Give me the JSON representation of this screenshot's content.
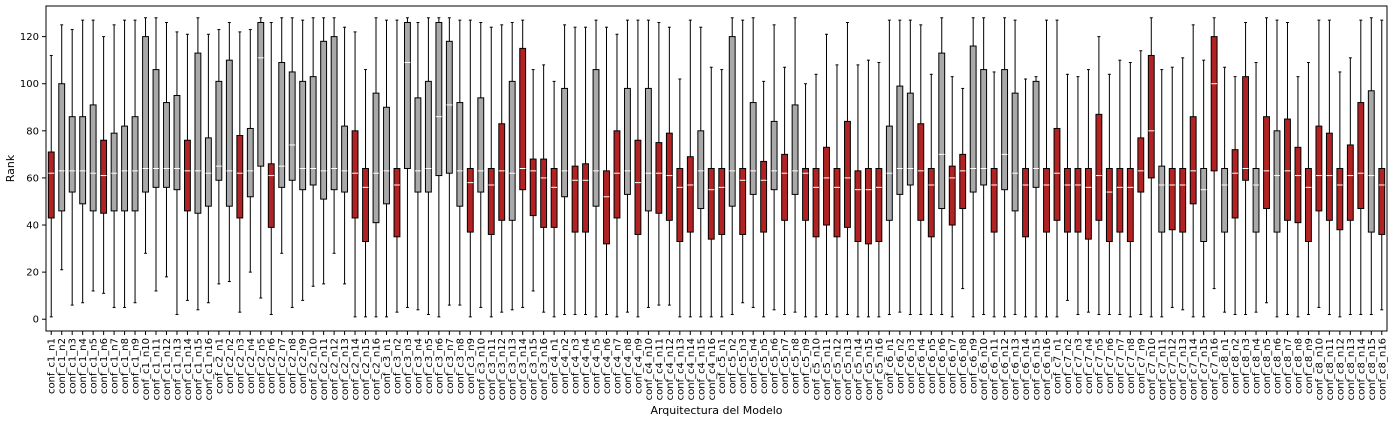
{
  "chart_data": {
    "type": "boxplot",
    "xlabel": "Arquitectura del Modelo",
    "ylabel": "Rank",
    "ylim": [
      -5,
      133
    ],
    "yticks": [
      0,
      20,
      40,
      60,
      80,
      100,
      120
    ],
    "grid": false,
    "colors": {
      "gray": "#a9a9a9",
      "red": "#b22222",
      "median": "#ffffff",
      "whisker": "#000000"
    },
    "categories": [
      "conf_c1_n1",
      "conf_c1_n2",
      "conf_c1_n3",
      "conf_c1_n4",
      "conf_c1_n5",
      "conf_c1_n6",
      "conf_c1_n7",
      "conf_c1_n8",
      "conf_c1_n9",
      "conf_c1_n10",
      "conf_c1_n11",
      "conf_c1_n12",
      "conf_c1_n13",
      "conf_c1_n14",
      "conf_c1_n15",
      "conf_c1_n16",
      "conf_c2_n1",
      "conf_c2_n2",
      "conf_c2_n3",
      "conf_c2_n4",
      "conf_c2_n5",
      "conf_c2_n6",
      "conf_c2_n7",
      "conf_c2_n8",
      "conf_c2_n9",
      "conf_c2_n10",
      "conf_c2_n11",
      "conf_c2_n12",
      "conf_c2_n13",
      "conf_c2_n14",
      "conf_c2_n15",
      "conf_c2_n16",
      "conf_c3_n1",
      "conf_c3_n2",
      "conf_c3_n3",
      "conf_c3_n4",
      "conf_c3_n5",
      "conf_c3_n6",
      "conf_c3_n7",
      "conf_c3_n8",
      "conf_c3_n9",
      "conf_c3_n10",
      "conf_c3_n11",
      "conf_c3_n12",
      "conf_c3_n13",
      "conf_c3_n14",
      "conf_c3_n15",
      "conf_c3_n16",
      "conf_c4_n1",
      "conf_c4_n2",
      "conf_c4_n3",
      "conf_c4_n4",
      "conf_c4_n5",
      "conf_c4_n6",
      "conf_c4_n7",
      "conf_c4_n8",
      "conf_c4_n9",
      "conf_c4_n10",
      "conf_c4_n11",
      "conf_c4_n12",
      "conf_c4_n13",
      "conf_c4_n14",
      "conf_c4_n15",
      "conf_c4_n16",
      "conf_c5_n1",
      "conf_c5_n2",
      "conf_c5_n3",
      "conf_c5_n4",
      "conf_c5_n5",
      "conf_c5_n6",
      "conf_c5_n7",
      "conf_c5_n8",
      "conf_c5_n9",
      "conf_c5_n10",
      "conf_c5_n11",
      "conf_c5_n12",
      "conf_c5_n13",
      "conf_c5_n14",
      "conf_c5_n15",
      "conf_c5_n16",
      "conf_c6_n1",
      "conf_c6_n2",
      "conf_c6_n3",
      "conf_c6_n4",
      "conf_c6_n5",
      "conf_c6_n6",
      "conf_c6_n7",
      "conf_c6_n8",
      "conf_c6_n9",
      "conf_c6_n10",
      "conf_c6_n11",
      "conf_c6_n12",
      "conf_c6_n13",
      "conf_c6_n14",
      "conf_c6_n15",
      "conf_c6_n16",
      "conf_c7_n1",
      "conf_c7_n2",
      "conf_c7_n3",
      "conf_c7_n4",
      "conf_c7_n5",
      "conf_c7_n6",
      "conf_c7_n7",
      "conf_c7_n8",
      "conf_c7_n9",
      "conf_c7_n10",
      "conf_c7_n11",
      "conf_c7_n12",
      "conf_c7_n13",
      "conf_c7_n14",
      "conf_c7_n15",
      "conf_c7_n16",
      "conf_c8_n1",
      "conf_c8_n2",
      "conf_c8_n3",
      "conf_c8_n4",
      "conf_c8_n5",
      "conf_c8_n6",
      "conf_c8_n7",
      "conf_c8_n8",
      "conf_c8_n9",
      "conf_c8_n10",
      "conf_c8_n11",
      "conf_c8_n12",
      "conf_c8_n13",
      "conf_c8_n14",
      "conf_c8_n15",
      "conf_c8_n16"
    ],
    "box_colors": [
      "red",
      "gray",
      "gray",
      "gray",
      "gray",
      "red",
      "gray",
      "gray",
      "gray",
      "gray",
      "gray",
      "gray",
      "gray",
      "red",
      "gray",
      "gray",
      "gray",
      "gray",
      "red",
      "gray",
      "gray",
      "red",
      "gray",
      "gray",
      "gray",
      "gray",
      "gray",
      "gray",
      "gray",
      "red",
      "red",
      "gray",
      "gray",
      "red",
      "gray",
      "gray",
      "gray",
      "gray",
      "gray",
      "gray",
      "red",
      "gray",
      "red",
      "red",
      "gray",
      "red",
      "red",
      "red",
      "red",
      "gray",
      "red",
      "red",
      "gray",
      "red",
      "red",
      "gray",
      "red",
      "gray",
      "red",
      "red",
      "red",
      "red",
      "gray",
      "red",
      "red",
      "gray",
      "red",
      "gray",
      "red",
      "gray",
      "red",
      "gray",
      "red",
      "red",
      "red",
      "red",
      "red",
      "red",
      "red",
      "red",
      "gray",
      "gray",
      "gray",
      "red",
      "red",
      "gray",
      "red",
      "red",
      "gray",
      "gray",
      "red",
      "gray",
      "gray",
      "red",
      "gray",
      "red",
      "red",
      "red",
      "red",
      "red",
      "red",
      "red",
      "red",
      "red",
      "red",
      "red",
      "gray",
      "red",
      "red",
      "red",
      "gray",
      "red",
      "gray",
      "red",
      "red",
      "gray",
      "red",
      "gray",
      "red",
      "red",
      "red",
      "red",
      "red",
      "red",
      "red",
      "red",
      "gray",
      "red"
    ],
    "boxes": [
      {
        "min": 1,
        "q1": 43,
        "median": 62,
        "q3": 71,
        "max": 112
      },
      {
        "min": 21,
        "q1": 46,
        "median": 63,
        "q3": 100,
        "max": 125
      },
      {
        "min": 6,
        "q1": 54,
        "median": 63,
        "q3": 86,
        "max": 123
      },
      {
        "min": 7,
        "q1": 49,
        "median": 63,
        "q3": 86,
        "max": 127
      },
      {
        "min": 12,
        "q1": 46,
        "median": 62,
        "q3": 91,
        "max": 127
      },
      {
        "min": 11,
        "q1": 45,
        "median": 61,
        "q3": 76,
        "max": 120
      },
      {
        "min": 5,
        "q1": 46,
        "median": 62,
        "q3": 79,
        "max": 125
      },
      {
        "min": 5,
        "q1": 46,
        "median": 63,
        "q3": 82,
        "max": 127
      },
      {
        "min": 7,
        "q1": 46,
        "median": 63,
        "q3": 86,
        "max": 127
      },
      {
        "min": 28,
        "q1": 54,
        "median": 64,
        "q3": 120,
        "max": 128
      },
      {
        "min": 12,
        "q1": 56,
        "median": 64,
        "q3": 106,
        "max": 128
      },
      {
        "min": 18,
        "q1": 56,
        "median": 64,
        "q3": 92,
        "max": 126
      },
      {
        "min": 2,
        "q1": 55,
        "median": 64,
        "q3": 95,
        "max": 122
      },
      {
        "min": 8,
        "q1": 46,
        "median": 63,
        "q3": 76,
        "max": 121
      },
      {
        "min": 4,
        "q1": 45,
        "median": 63,
        "q3": 113,
        "max": 128
      },
      {
        "min": 7,
        "q1": 48,
        "median": 62,
        "q3": 77,
        "max": 121
      },
      {
        "min": 15,
        "q1": 59,
        "median": 65,
        "q3": 101,
        "max": 123
      },
      {
        "min": 16,
        "q1": 48,
        "median": 63,
        "q3": 110,
        "max": 126
      },
      {
        "min": 3,
        "q1": 43,
        "median": 62,
        "q3": 78,
        "max": 122
      },
      {
        "min": 20,
        "q1": 52,
        "median": 63,
        "q3": 81,
        "max": 123
      },
      {
        "min": 9,
        "q1": 65,
        "median": 111,
        "q3": 126,
        "max": 128
      },
      {
        "min": 2,
        "q1": 39,
        "median": 61,
        "q3": 66,
        "max": 126
      },
      {
        "min": 28,
        "q1": 56,
        "median": 65,
        "q3": 109,
        "max": 128
      },
      {
        "min": 5,
        "q1": 59,
        "median": 74,
        "q3": 105,
        "max": 128
      },
      {
        "min": 8,
        "q1": 55,
        "median": 64,
        "q3": 101,
        "max": 127
      },
      {
        "min": 14,
        "q1": 57,
        "median": 64,
        "q3": 103,
        "max": 128
      },
      {
        "min": 15,
        "q1": 51,
        "median": 63,
        "q3": 118,
        "max": 128
      },
      {
        "min": 28,
        "q1": 55,
        "median": 64,
        "q3": 120,
        "max": 128
      },
      {
        "min": 15,
        "q1": 54,
        "median": 63,
        "q3": 82,
        "max": 124
      },
      {
        "min": 1,
        "q1": 43,
        "median": 62,
        "q3": 80,
        "max": 122
      },
      {
        "min": 1,
        "q1": 33,
        "median": 56,
        "q3": 64,
        "max": 106
      },
      {
        "min": 1,
        "q1": 41,
        "median": 62,
        "q3": 96,
        "max": 128
      },
      {
        "min": 1,
        "q1": 49,
        "median": 63,
        "q3": 90,
        "max": 127
      },
      {
        "min": 3,
        "q1": 35,
        "median": 57,
        "q3": 64,
        "max": 127
      },
      {
        "min": 5,
        "q1": 64,
        "median": 109,
        "q3": 126,
        "max": 128
      },
      {
        "min": 4,
        "q1": 54,
        "median": 63,
        "q3": 94,
        "max": 126
      },
      {
        "min": 2,
        "q1": 54,
        "median": 64,
        "q3": 101,
        "max": 128
      },
      {
        "min": 1,
        "q1": 61,
        "median": 86,
        "q3": 126,
        "max": 128
      },
      {
        "min": 6,
        "q1": 62,
        "median": 91,
        "q3": 118,
        "max": 128
      },
      {
        "min": 6,
        "q1": 48,
        "median": 63,
        "q3": 92,
        "max": 127
      },
      {
        "min": 1,
        "q1": 37,
        "median": 58,
        "q3": 64,
        "max": 127
      },
      {
        "min": 5,
        "q1": 54,
        "median": 63,
        "q3": 94,
        "max": 126
      },
      {
        "min": 1,
        "q1": 36,
        "median": 57,
        "q3": 64,
        "max": 124
      },
      {
        "min": 3,
        "q1": 42,
        "median": 63,
        "q3": 83,
        "max": 125
      },
      {
        "min": 4,
        "q1": 42,
        "median": 62,
        "q3": 101,
        "max": 126
      },
      {
        "min": 5,
        "q1": 55,
        "median": 64,
        "q3": 115,
        "max": 127
      },
      {
        "min": 12,
        "q1": 44,
        "median": 63,
        "q3": 68,
        "max": 106
      },
      {
        "min": 3,
        "q1": 39,
        "median": 60,
        "q3": 68,
        "max": 108
      },
      {
        "min": 1,
        "q1": 39,
        "median": 56,
        "q3": 64,
        "max": 101
      },
      {
        "min": 2,
        "q1": 52,
        "median": 63,
        "q3": 98,
        "max": 125
      },
      {
        "min": 2,
        "q1": 37,
        "median": 59,
        "q3": 65,
        "max": 124
      },
      {
        "min": 2,
        "q1": 37,
        "median": 59,
        "q3": 66,
        "max": 124
      },
      {
        "min": 1,
        "q1": 48,
        "median": 63,
        "q3": 106,
        "max": 127
      },
      {
        "min": 2,
        "q1": 32,
        "median": 52,
        "q3": 63,
        "max": 124
      },
      {
        "min": 1,
        "q1": 43,
        "median": 62,
        "q3": 80,
        "max": 121
      },
      {
        "min": 3,
        "q1": 53,
        "median": 63,
        "q3": 98,
        "max": 127
      },
      {
        "min": 1,
        "q1": 36,
        "median": 58,
        "q3": 76,
        "max": 127
      },
      {
        "min": 5,
        "q1": 46,
        "median": 62,
        "q3": 98,
        "max": 127
      },
      {
        "min": 6,
        "q1": 45,
        "median": 62,
        "q3": 75,
        "max": 126
      },
      {
        "min": 6,
        "q1": 42,
        "median": 61,
        "q3": 79,
        "max": 124
      },
      {
        "min": 1,
        "q1": 33,
        "median": 56,
        "q3": 64,
        "max": 102
      },
      {
        "min": 1,
        "q1": 37,
        "median": 57,
        "q3": 69,
        "max": 127
      },
      {
        "min": 1,
        "q1": 47,
        "median": 63,
        "q3": 80,
        "max": 124
      },
      {
        "min": 1,
        "q1": 34,
        "median": 55,
        "q3": 64,
        "max": 107
      },
      {
        "min": 1,
        "q1": 36,
        "median": 56,
        "q3": 64,
        "max": 106
      },
      {
        "min": 2,
        "q1": 48,
        "median": 63,
        "q3": 120,
        "max": 128
      },
      {
        "min": 7,
        "q1": 36,
        "median": 59,
        "q3": 64,
        "max": 127
      },
      {
        "min": 5,
        "q1": 53,
        "median": 63,
        "q3": 92,
        "max": 128
      },
      {
        "min": 1,
        "q1": 37,
        "median": 59,
        "q3": 67,
        "max": 101
      },
      {
        "min": 4,
        "q1": 55,
        "median": 63,
        "q3": 84,
        "max": 125
      },
      {
        "min": 2,
        "q1": 42,
        "median": 62,
        "q3": 70,
        "max": 107
      },
      {
        "min": 3,
        "q1": 53,
        "median": 63,
        "q3": 91,
        "max": 128
      },
      {
        "min": 1,
        "q1": 42,
        "median": 62,
        "q3": 64,
        "max": 100
      },
      {
        "min": 1,
        "q1": 35,
        "median": 56,
        "q3": 64,
        "max": 104
      },
      {
        "min": 2,
        "q1": 40,
        "median": 60,
        "q3": 73,
        "max": 121
      },
      {
        "min": 1,
        "q1": 35,
        "median": 56,
        "q3": 64,
        "max": 108
      },
      {
        "min": 2,
        "q1": 39,
        "median": 60,
        "q3": 84,
        "max": 126
      },
      {
        "min": 1,
        "q1": 33,
        "median": 55,
        "q3": 63,
        "max": 108
      },
      {
        "min": 1,
        "q1": 32,
        "median": 55,
        "q3": 64,
        "max": 110
      },
      {
        "min": 1,
        "q1": 33,
        "median": 56,
        "q3": 64,
        "max": 109
      },
      {
        "min": 2,
        "q1": 42,
        "median": 62,
        "q3": 82,
        "max": 127
      },
      {
        "min": 3,
        "q1": 53,
        "median": 64,
        "q3": 99,
        "max": 127
      },
      {
        "min": 2,
        "q1": 57,
        "median": 64,
        "q3": 96,
        "max": 127
      },
      {
        "min": 2,
        "q1": 42,
        "median": 63,
        "q3": 83,
        "max": 125
      },
      {
        "min": 2,
        "q1": 35,
        "median": 57,
        "q3": 64,
        "max": 104
      },
      {
        "min": 2,
        "q1": 47,
        "median": 70,
        "q3": 113,
        "max": 128
      },
      {
        "min": 1,
        "q1": 40,
        "median": 60,
        "q3": 65,
        "max": 103
      },
      {
        "min": 13,
        "q1": 47,
        "median": 63,
        "q3": 70,
        "max": 98
      },
      {
        "min": 1,
        "q1": 54,
        "median": 64,
        "q3": 116,
        "max": 128
      },
      {
        "min": 2,
        "q1": 57,
        "median": 64,
        "q3": 106,
        "max": 128
      },
      {
        "min": 1,
        "q1": 37,
        "median": 57,
        "q3": 64,
        "max": 105
      },
      {
        "min": 1,
        "q1": 55,
        "median": 70,
        "q3": 106,
        "max": 128
      },
      {
        "min": 2,
        "q1": 46,
        "median": 62,
        "q3": 96,
        "max": 127
      },
      {
        "min": 1,
        "q1": 35,
        "median": 57,
        "q3": 64,
        "max": 102
      },
      {
        "min": 1,
        "q1": 56,
        "median": 64,
        "q3": 101,
        "max": 103
      },
      {
        "min": 1,
        "q1": 37,
        "median": 57,
        "q3": 64,
        "max": 127
      },
      {
        "min": 1,
        "q1": 42,
        "median": 62,
        "q3": 81,
        "max": 127
      },
      {
        "min": 8,
        "q1": 37,
        "median": 57,
        "q3": 64,
        "max": 104
      },
      {
        "min": 2,
        "q1": 37,
        "median": 57,
        "q3": 64,
        "max": 103
      },
      {
        "min": 3,
        "q1": 34,
        "median": 56,
        "q3": 64,
        "max": 106
      },
      {
        "min": 2,
        "q1": 42,
        "median": 61,
        "q3": 87,
        "max": 120
      },
      {
        "min": 2,
        "q1": 33,
        "median": 54,
        "q3": 64,
        "max": 104
      },
      {
        "min": 2,
        "q1": 37,
        "median": 56,
        "q3": 64,
        "max": 110
      },
      {
        "min": 1,
        "q1": 33,
        "median": 56,
        "q3": 64,
        "max": 109
      },
      {
        "min": 2,
        "q1": 54,
        "median": 63,
        "q3": 77,
        "max": 114
      },
      {
        "min": 1,
        "q1": 60,
        "median": 80,
        "q3": 112,
        "max": 128
      },
      {
        "min": 1,
        "q1": 37,
        "median": 57,
        "q3": 65,
        "max": 106
      },
      {
        "min": 5,
        "q1": 38,
        "median": 57,
        "q3": 64,
        "max": 107
      },
      {
        "min": 4,
        "q1": 37,
        "median": 57,
        "q3": 64,
        "max": 111
      },
      {
        "min": 1,
        "q1": 49,
        "median": 63,
        "q3": 86,
        "max": 125
      },
      {
        "min": 1,
        "q1": 33,
        "median": 55,
        "q3": 64,
        "max": 110
      },
      {
        "min": 13,
        "q1": 63,
        "median": 100,
        "q3": 120,
        "max": 128
      },
      {
        "min": 3,
        "q1": 37,
        "median": 57,
        "q3": 64,
        "max": 107
      },
      {
        "min": 2,
        "q1": 43,
        "median": 62,
        "q3": 72,
        "max": 103
      },
      {
        "min": 2,
        "q1": 59,
        "median": 64,
        "q3": 103,
        "max": 126
      },
      {
        "min": 3,
        "q1": 37,
        "median": 57,
        "q3": 64,
        "max": 109
      },
      {
        "min": 7,
        "q1": 47,
        "median": 63,
        "q3": 86,
        "max": 128
      },
      {
        "min": 1,
        "q1": 37,
        "median": 61,
        "q3": 80,
        "max": 127
      },
      {
        "min": 2,
        "q1": 42,
        "median": 63,
        "q3": 85,
        "max": 126
      },
      {
        "min": 1,
        "q1": 41,
        "median": 61,
        "q3": 73,
        "max": 103
      },
      {
        "min": 2,
        "q1": 33,
        "median": 56,
        "q3": 64,
        "max": 109
      },
      {
        "min": 5,
        "q1": 46,
        "median": 61,
        "q3": 82,
        "max": 127
      },
      {
        "min": 2,
        "q1": 42,
        "median": 61,
        "q3": 79,
        "max": 127
      },
      {
        "min": 1,
        "q1": 38,
        "median": 57,
        "q3": 64,
        "max": 105
      },
      {
        "min": 2,
        "q1": 42,
        "median": 61,
        "q3": 74,
        "max": 111
      },
      {
        "min": 2,
        "q1": 47,
        "median": 62,
        "q3": 92,
        "max": 127
      },
      {
        "min": 2,
        "q1": 37,
        "median": 61,
        "q3": 97,
        "max": 128
      },
      {
        "min": 4,
        "q1": 36,
        "median": 57,
        "q3": 64,
        "max": 127
      }
    ]
  }
}
